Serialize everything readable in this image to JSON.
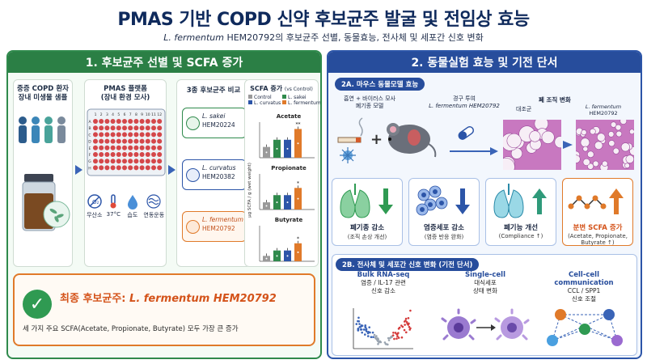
{
  "header": {
    "title": "PMAS 기반 COPD 신약 후보균주 발굴 및 전임상 효능",
    "subtitle_italic": "L. fermentum",
    "subtitle_rest": " HEM20792의 후보균주 선별, 동물효능, 전사체 및 세포간 신호 변화"
  },
  "left": {
    "heading": "1. 후보균주 선별 및 SCFA 증가",
    "patient_card": {
      "title_line1": "중증 COPD 환자",
      "title_line2": "장내 미생물 샘플"
    },
    "platform_card": {
      "title_line1": "PMAS 플랫폼",
      "title_line2": "(장내 환경 모사)",
      "plate_cols": [
        "1",
        "2",
        "3",
        "4",
        "5",
        "6",
        "7",
        "8",
        "9",
        "10",
        "11",
        "12"
      ],
      "plate_rows": [
        "A",
        "B",
        "C",
        "D",
        "E",
        "F",
        "G",
        "H"
      ],
      "conditions": [
        "무산소",
        "37°C",
        "습도",
        "연동운동"
      ]
    },
    "strain_card": {
      "title": "3종 후보균주 비교",
      "strains": [
        {
          "name": "L. sakei",
          "code": "HEM20224",
          "color": "#2f8a4c"
        },
        {
          "name": "L. curvatus",
          "code": "HEM20382",
          "color": "#2c55a8"
        },
        {
          "name": "L. fermentum",
          "code": "HEM20792",
          "color": "#e07a2a"
        }
      ]
    },
    "scfa_card": {
      "title": "SCFA 증가",
      "title_suffix": "(vs Control)",
      "ylabel": "μg SCFA / g (wet weight)",
      "legend": [
        {
          "label": "Control",
          "color": "#9a9a9a"
        },
        {
          "label": "L. sakei",
          "color": "#2f8a4c"
        },
        {
          "label": "L. curvatus",
          "color": "#2c55a8"
        },
        {
          "label": "L. fermentum",
          "color": "#e07a2a"
        }
      ]
    },
    "final": {
      "check": "✓",
      "title": "최종 후보균주:",
      "title_strain": "L. fermentum HEM20792",
      "desc": "세 가지 주요 SCFA(Acetate, Propionate, Butyrate) 모두 가장 큰 증가"
    }
  },
  "chart_data": {
    "type": "bar",
    "panels": [
      {
        "title": "Acetate",
        "series_values": [
          3,
          5,
          5,
          8
        ],
        "significance": "**"
      },
      {
        "title": "Propionate",
        "series_values": [
          2,
          4,
          4,
          6
        ],
        "significance": "*"
      },
      {
        "title": "Butyrate",
        "series_values": [
          1.5,
          3,
          3,
          5
        ],
        "significance": "*"
      }
    ],
    "series": [
      {
        "name": "Control",
        "color": "#9a9a9a"
      },
      {
        "name": "L. sakei",
        "color": "#2f8a4c"
      },
      {
        "name": "L. curvatus",
        "color": "#2c55a8"
      },
      {
        "name": "L. fermentum",
        "color": "#e07a2a"
      }
    ],
    "ylabel": "μg SCFA / g (wet weight)"
  },
  "right": {
    "heading": "2. 동물실험 효능 및 기전 단서",
    "sec_a": "2A. 마우스 동물모델 효능",
    "model_label_1": "흡연 + 바이러스 모사",
    "model_label_2": "폐기종 모델",
    "oral_label": "경구 투여",
    "oral_strain": "L. fermentum HEM20792",
    "tissue_title": "폐 조직 변화",
    "tissue_control": "대조군",
    "tissue_treat_1": "L. fermentum",
    "tissue_treat_2": "HEM20792",
    "effects": [
      {
        "label": "폐기종 감소",
        "sub": "(조직 손상 개선)",
        "dir": "down",
        "color": "#2f9a52"
      },
      {
        "label": "염증세포 감소",
        "sub": "(염증 반응 완화)",
        "dir": "down",
        "color": "#2c55a8"
      },
      {
        "label": "폐기능 개선",
        "sub": "(Compliance ↑)",
        "dir": "up",
        "color": "#2f9a7a"
      },
      {
        "label": "분변 SCFA 증가",
        "sub": "(Acetate, Propionate, Butyrate ↑)",
        "dir": "up",
        "color": "#e07a2a"
      }
    ],
    "sec_b": "2B. 전사체 및 세포간 신호 변화 (기전 단서)",
    "bulk": {
      "title": "Bulk RNA-seq",
      "d1": "염증 / IL-17 관련",
      "d2": "신호 감소"
    },
    "single": {
      "title": "Single-cell",
      "d1": "대식세포",
      "d2": "상태 변화"
    },
    "cellcomm": {
      "title": "Cell-cell communication",
      "d1": "CCL / SPP1",
      "d2": "신호 조절"
    }
  }
}
